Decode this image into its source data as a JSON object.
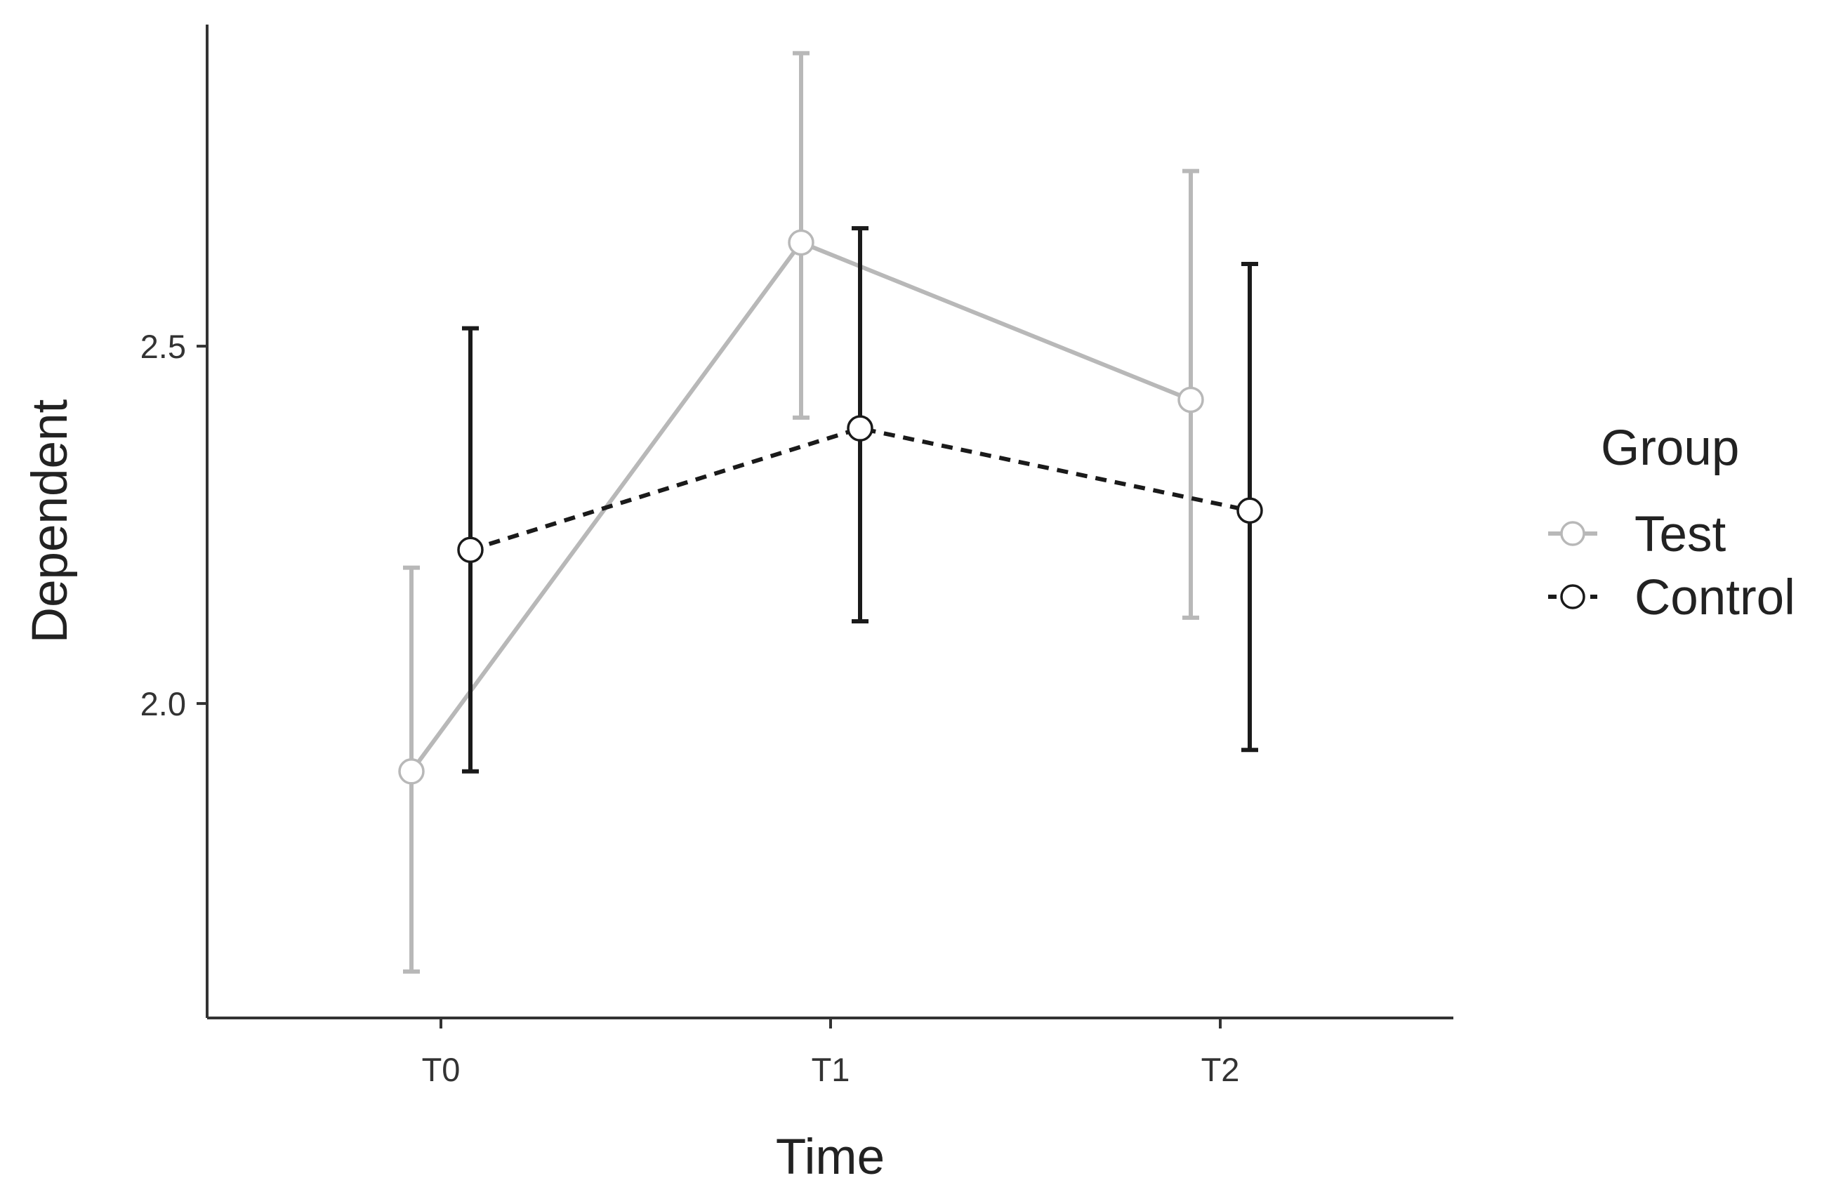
{
  "chart_data": {
    "type": "line",
    "xlabel": "Time",
    "ylabel": "Dependent",
    "categories": [
      "T0",
      "T1",
      "T2"
    ],
    "y_ticks": [
      2.0,
      2.5
    ],
    "y_tick_labels": [
      "2.0",
      "2.5"
    ],
    "ylim": [
      1.56,
      2.95
    ],
    "grid": false,
    "legend": {
      "title": "Group",
      "position": "right"
    },
    "series": [
      {
        "name": "Test",
        "values": [
          1.905,
          2.645,
          2.425
        ],
        "error_low": [
          1.625,
          2.4,
          2.12
        ],
        "error_high": [
          2.19,
          2.91,
          2.745
        ],
        "color": "#b8b8b8",
        "line_style": "solid"
      },
      {
        "name": "Control",
        "values": [
          2.215,
          2.385,
          2.27
        ],
        "error_low": [
          1.905,
          2.115,
          1.935
        ],
        "error_high": [
          2.525,
          2.665,
          2.615
        ],
        "color": "#1a1a1a",
        "line_style": "dashed"
      }
    ]
  }
}
